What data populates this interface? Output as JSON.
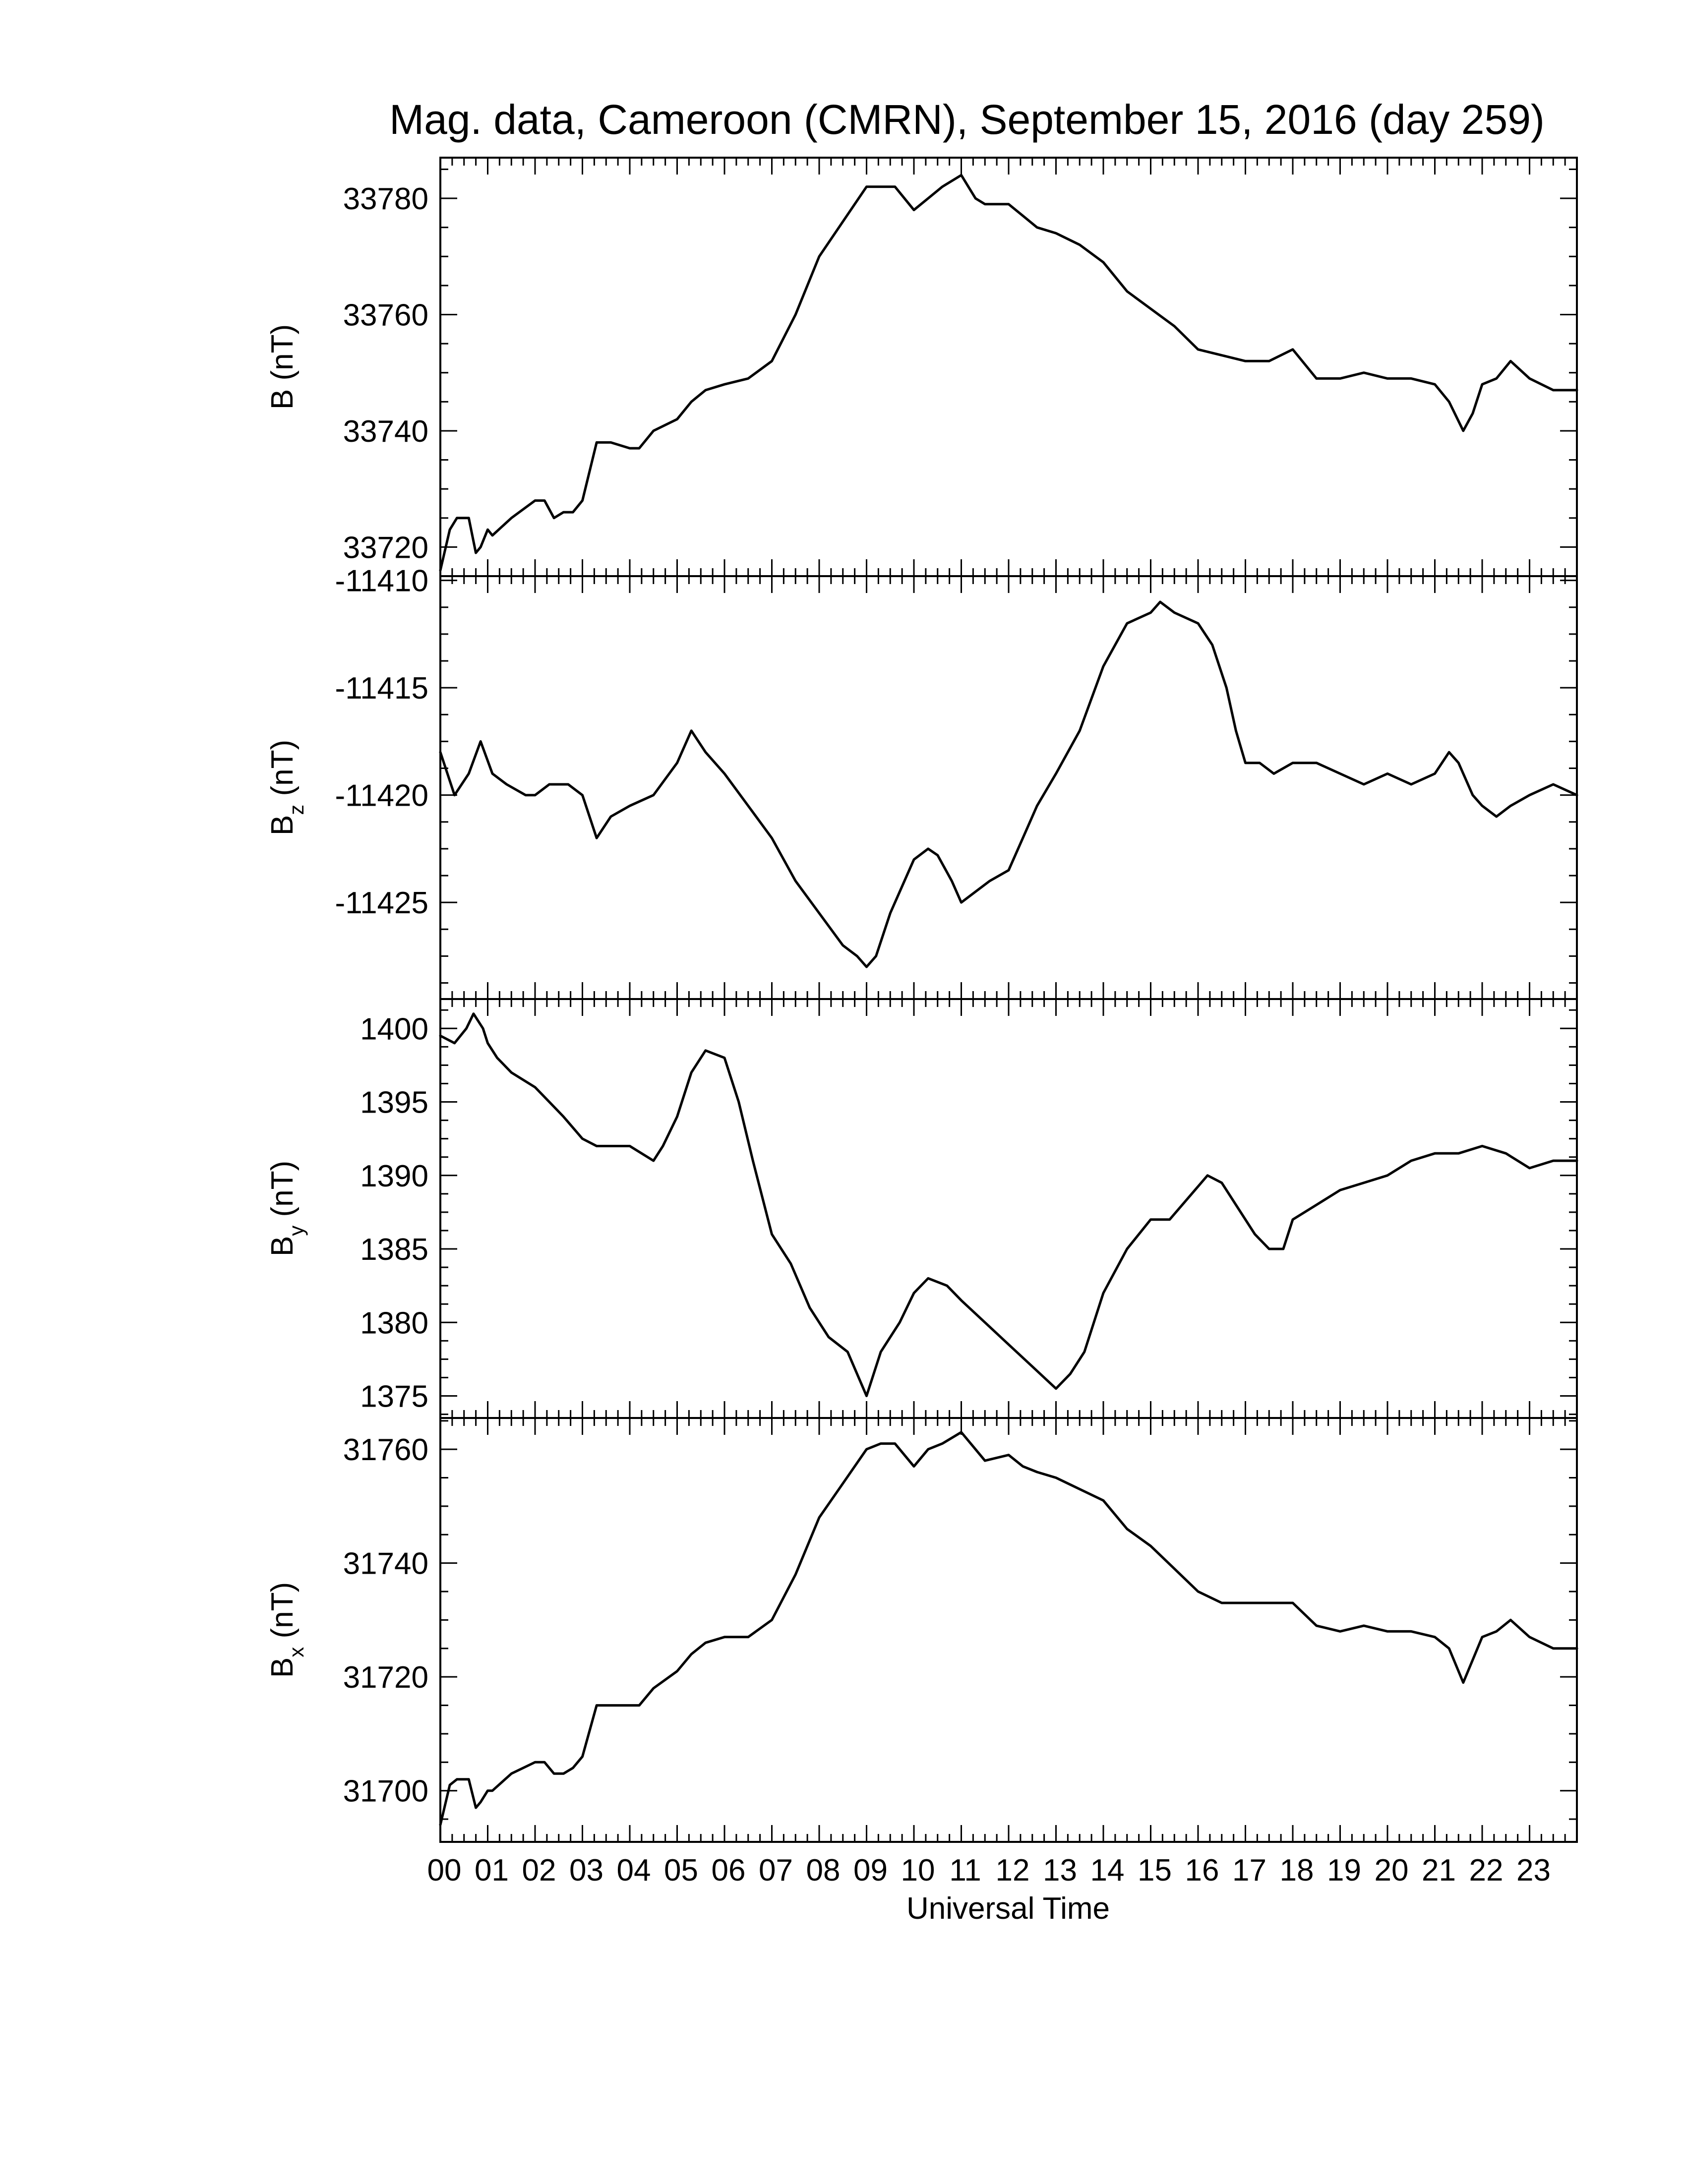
{
  "chart_data": {
    "title": "Mag. data, Cameroon (CMRN), September 15, 2016 (day 259)",
    "type": "line",
    "xlabel": "Universal Time",
    "xlim": [
      0,
      24
    ],
    "x_ticks": [
      "00",
      "01",
      "02",
      "03",
      "04",
      "05",
      "06",
      "07",
      "08",
      "09",
      "10",
      "11",
      "12",
      "13",
      "14",
      "15",
      "16",
      "17",
      "18",
      "19",
      "20",
      "21",
      "22",
      "23"
    ],
    "line_color": "#000000",
    "grid": false,
    "panels": [
      {
        "id": "B",
        "ylabel_main": "B",
        "ylabel_sub": "",
        "ylabel_unit": "(nT)",
        "ylim": [
          33715,
          33787
        ],
        "yticks": [
          33720,
          33740,
          33760,
          33780
        ],
        "series": {
          "x": [
            0.0,
            0.2,
            0.35,
            0.6,
            0.75,
            0.85,
            1.0,
            1.1,
            1.5,
            2.0,
            2.2,
            2.4,
            2.6,
            2.8,
            3.0,
            3.3,
            3.6,
            4.0,
            4.2,
            4.5,
            5.0,
            5.3,
            5.6,
            6.0,
            6.5,
            7.0,
            7.5,
            8.0,
            8.5,
            9.0,
            9.3,
            9.6,
            10.0,
            10.3,
            10.6,
            11.0,
            11.3,
            11.5,
            12.0,
            12.3,
            12.6,
            13.0,
            13.5,
            14.0,
            14.5,
            15.0,
            15.5,
            16.0,
            16.5,
            17.0,
            17.5,
            18.0,
            18.5,
            19.0,
            19.5,
            20.0,
            20.5,
            21.0,
            21.3,
            21.6,
            21.8,
            22.0,
            22.3,
            22.6,
            23.0,
            23.5,
            24.0
          ],
          "y": [
            33716,
            33723,
            33725,
            33725,
            33719,
            33720,
            33723,
            33722,
            33725,
            33728,
            33728,
            33725,
            33726,
            33726,
            33728,
            33738,
            33738,
            33737,
            33737,
            33740,
            33742,
            33745,
            33747,
            33748,
            33749,
            33752,
            33760,
            33770,
            33776,
            33782,
            33782,
            33782,
            33778,
            33780,
            33782,
            33784,
            33780,
            33779,
            33779,
            33777,
            33775,
            33774,
            33772,
            33769,
            33764,
            33761,
            33758,
            33754,
            33753,
            33752,
            33752,
            33754,
            33749,
            33749,
            33750,
            33749,
            33749,
            33748,
            33745,
            33740,
            33743,
            33748,
            33749,
            33752,
            33749,
            33747,
            33747
          ]
        }
      },
      {
        "id": "Bz",
        "ylabel_main": "B",
        "ylabel_sub": "z",
        "ylabel_unit": "(nT)",
        "ylim": [
          -11429.5,
          -11409.8
        ],
        "yticks": [
          -11410,
          -11415,
          -11420,
          -11425
        ],
        "series": {
          "x": [
            0.0,
            0.3,
            0.6,
            0.85,
            1.1,
            1.4,
            1.8,
            2.0,
            2.3,
            2.7,
            3.0,
            3.3,
            3.6,
            4.0,
            4.5,
            5.0,
            5.3,
            5.6,
            6.0,
            6.5,
            7.0,
            7.5,
            8.0,
            8.5,
            8.8,
            9.0,
            9.2,
            9.5,
            10.0,
            10.3,
            10.5,
            10.8,
            11.0,
            11.3,
            11.6,
            12.0,
            12.3,
            12.6,
            13.0,
            13.5,
            14.0,
            14.5,
            15.0,
            15.2,
            15.5,
            16.0,
            16.3,
            16.6,
            16.8,
            17.0,
            17.3,
            17.6,
            18.0,
            18.5,
            19.0,
            19.5,
            20.0,
            20.5,
            21.0,
            21.3,
            21.5,
            21.8,
            22.0,
            22.3,
            22.6,
            23.0,
            23.5,
            24.0
          ],
          "y": [
            -11418,
            -11420,
            -11419,
            -11417.5,
            -11419,
            -11419.5,
            -11420,
            -11420,
            -11419.5,
            -11419.5,
            -11420,
            -11422,
            -11421,
            -11420.5,
            -11420,
            -11418.5,
            -11417,
            -11418,
            -11419,
            -11420.5,
            -11422,
            -11424,
            -11425.5,
            -11427,
            -11427.5,
            -11428,
            -11427.5,
            -11425.5,
            -11423,
            -11422.5,
            -11422.8,
            -11424,
            -11425,
            -11424.5,
            -11424,
            -11423.5,
            -11422,
            -11420.5,
            -11419,
            -11417,
            -11414,
            -11412,
            -11411.5,
            -11411,
            -11411.5,
            -11412,
            -11413,
            -11415,
            -11417,
            -11418.5,
            -11418.5,
            -11419,
            -11418.5,
            -11418.5,
            -11419,
            -11419.5,
            -11419,
            -11419.5,
            -11419,
            -11418,
            -11418.5,
            -11420,
            -11420.5,
            -11421,
            -11420.5,
            -11420,
            -11419.5,
            -11420
          ]
        }
      },
      {
        "id": "By",
        "ylabel_main": "B",
        "ylabel_sub": "y",
        "ylabel_unit": "(nT)",
        "ylim": [
          1373.5,
          1402
        ],
        "yticks": [
          1400,
          1395,
          1390,
          1385,
          1380,
          1375
        ],
        "series": {
          "x": [
            0.0,
            0.3,
            0.55,
            0.7,
            0.9,
            1.0,
            1.2,
            1.5,
            2.0,
            2.3,
            2.6,
            3.0,
            3.3,
            3.6,
            4.0,
            4.5,
            4.7,
            5.0,
            5.3,
            5.6,
            6.0,
            6.3,
            6.6,
            7.0,
            7.4,
            7.8,
            8.2,
            8.6,
            9.0,
            9.3,
            9.7,
            10.0,
            10.3,
            10.7,
            11.0,
            11.5,
            12.0,
            12.5,
            13.0,
            13.3,
            13.6,
            14.0,
            14.5,
            15.0,
            15.4,
            15.8,
            16.2,
            16.5,
            16.8,
            17.2,
            17.5,
            17.8,
            18.0,
            18.5,
            19.0,
            19.5,
            20.0,
            20.5,
            21.0,
            21.5,
            22.0,
            22.5,
            23.0,
            23.5,
            24.0
          ],
          "y": [
            1399.5,
            1399,
            1400,
            1401,
            1400,
            1399,
            1398,
            1397,
            1396,
            1395,
            1394,
            1392.5,
            1392,
            1392,
            1392,
            1391,
            1392,
            1394,
            1397,
            1398.5,
            1398,
            1395,
            1391,
            1386,
            1384,
            1381,
            1379,
            1378,
            1375,
            1378,
            1380,
            1382,
            1383,
            1382.5,
            1381.5,
            1380,
            1378.5,
            1377,
            1375.5,
            1376.5,
            1378,
            1382,
            1385,
            1387,
            1387,
            1388.5,
            1390,
            1389.5,
            1388,
            1386,
            1385,
            1385,
            1387,
            1388,
            1389,
            1389.5,
            1390,
            1391,
            1391.5,
            1391.5,
            1392,
            1391.5,
            1390.5,
            1391,
            1391
          ]
        }
      },
      {
        "id": "Bx",
        "ylabel_main": "B",
        "ylabel_sub": "x",
        "ylabel_unit": "(nT)",
        "ylim": [
          31691,
          31765.5
        ],
        "yticks": [
          31700,
          31720,
          31740,
          31760
        ],
        "series": {
          "x": [
            0.0,
            0.2,
            0.35,
            0.6,
            0.75,
            0.85,
            1.0,
            1.1,
            1.5,
            2.0,
            2.2,
            2.4,
            2.6,
            2.8,
            3.0,
            3.3,
            3.6,
            4.0,
            4.2,
            4.5,
            5.0,
            5.3,
            5.6,
            6.0,
            6.5,
            7.0,
            7.5,
            8.0,
            8.5,
            9.0,
            9.3,
            9.6,
            10.0,
            10.3,
            10.6,
            11.0,
            11.3,
            11.5,
            12.0,
            12.3,
            12.6,
            13.0,
            13.5,
            14.0,
            14.5,
            15.0,
            15.5,
            16.0,
            16.5,
            17.0,
            17.5,
            18.0,
            18.5,
            19.0,
            19.5,
            20.0,
            20.5,
            21.0,
            21.3,
            21.6,
            21.8,
            22.0,
            22.3,
            22.6,
            23.0,
            23.5,
            24.0
          ],
          "y": [
            31694,
            31701,
            31702,
            31702,
            31697,
            31698,
            31700,
            31700,
            31703,
            31705,
            31705,
            31703,
            31703,
            31704,
            31706,
            31715,
            31715,
            31715,
            31715,
            31718,
            31721,
            31724,
            31726,
            31727,
            31727,
            31730,
            31738,
            31748,
            31754,
            31760,
            31761,
            31761,
            31757,
            31760,
            31761,
            31763,
            31760,
            31758,
            31759,
            31757,
            31756,
            31755,
            31753,
            31751,
            31746,
            31743,
            31739,
            31735,
            31733,
            31733,
            31733,
            31733,
            31729,
            31728,
            31729,
            31728,
            31728,
            31727,
            31725,
            31719,
            31723,
            31727,
            31728,
            31730,
            31727,
            31725,
            31725
          ]
        }
      }
    ]
  }
}
